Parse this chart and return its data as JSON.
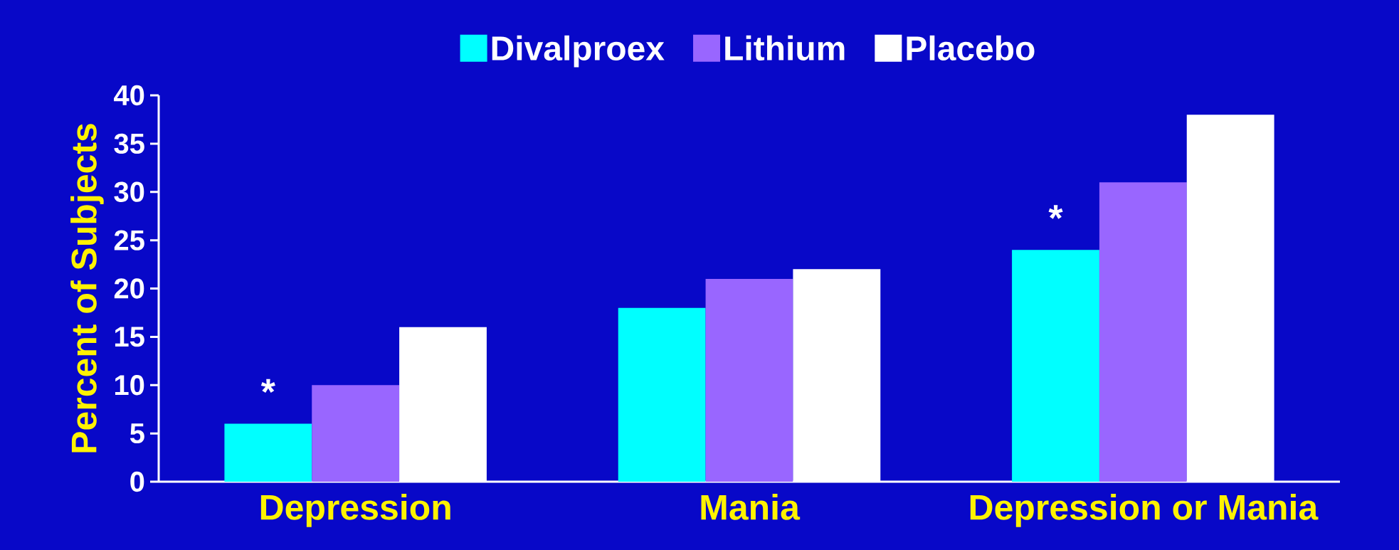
{
  "chart_data": {
    "type": "bar",
    "ylabel": "Percent of Subjects",
    "categories": [
      "Depression",
      "Mania",
      "Depression or Mania"
    ],
    "series": [
      {
        "name": "Divalproex",
        "color": "#00ffff",
        "values": [
          6,
          18,
          24
        ]
      },
      {
        "name": "Lithium",
        "color": "#9966ff",
        "values": [
          10,
          21,
          31
        ]
      },
      {
        "name": "Placebo",
        "color": "#ffffff",
        "values": [
          16,
          22,
          38
        ]
      }
    ],
    "ylim": [
      0,
      40
    ],
    "yticks": [
      0,
      5,
      10,
      15,
      20,
      25,
      30,
      35,
      40
    ],
    "annotations": [
      "*",
      "*"
    ],
    "legend": "top",
    "grid": false
  }
}
